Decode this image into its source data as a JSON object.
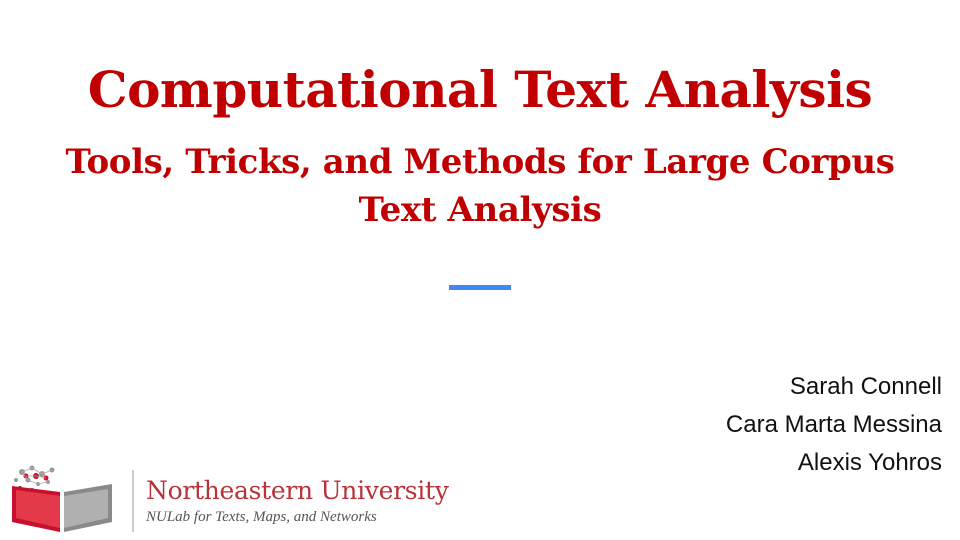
{
  "slide": {
    "title": "Computational Text Analysis",
    "subtitle": "Tools, Tricks, and Methods for Large Corpus Text Analysis",
    "authors": [
      "Sarah Connell",
      "Cara Marta Messina",
      "Alexis Yohros"
    ]
  },
  "logo": {
    "institution": "Northeastern University",
    "lab": "NULab for Texts, Maps, and Networks",
    "icon": "open-book-network-icon"
  },
  "colors": {
    "title": "#c00000",
    "accent_line": "#4285f4",
    "logo_red": "#b8323a",
    "logo_gray": "#8a8a8a"
  }
}
